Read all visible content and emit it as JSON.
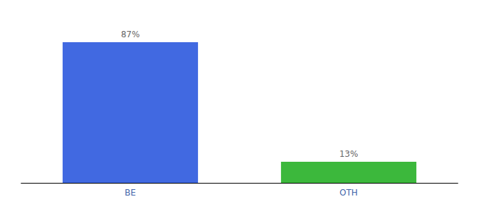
{
  "chart_data": {
    "type": "bar",
    "categories": [
      "BE",
      "OTH"
    ],
    "values": [
      87,
      13
    ],
    "value_labels": [
      "87%",
      "13%"
    ],
    "colors": [
      "#4169E1",
      "#3CB83C"
    ],
    "ylim": [
      0,
      100
    ],
    "data_labels": true,
    "tick_labels": "x",
    "grid": false
  }
}
